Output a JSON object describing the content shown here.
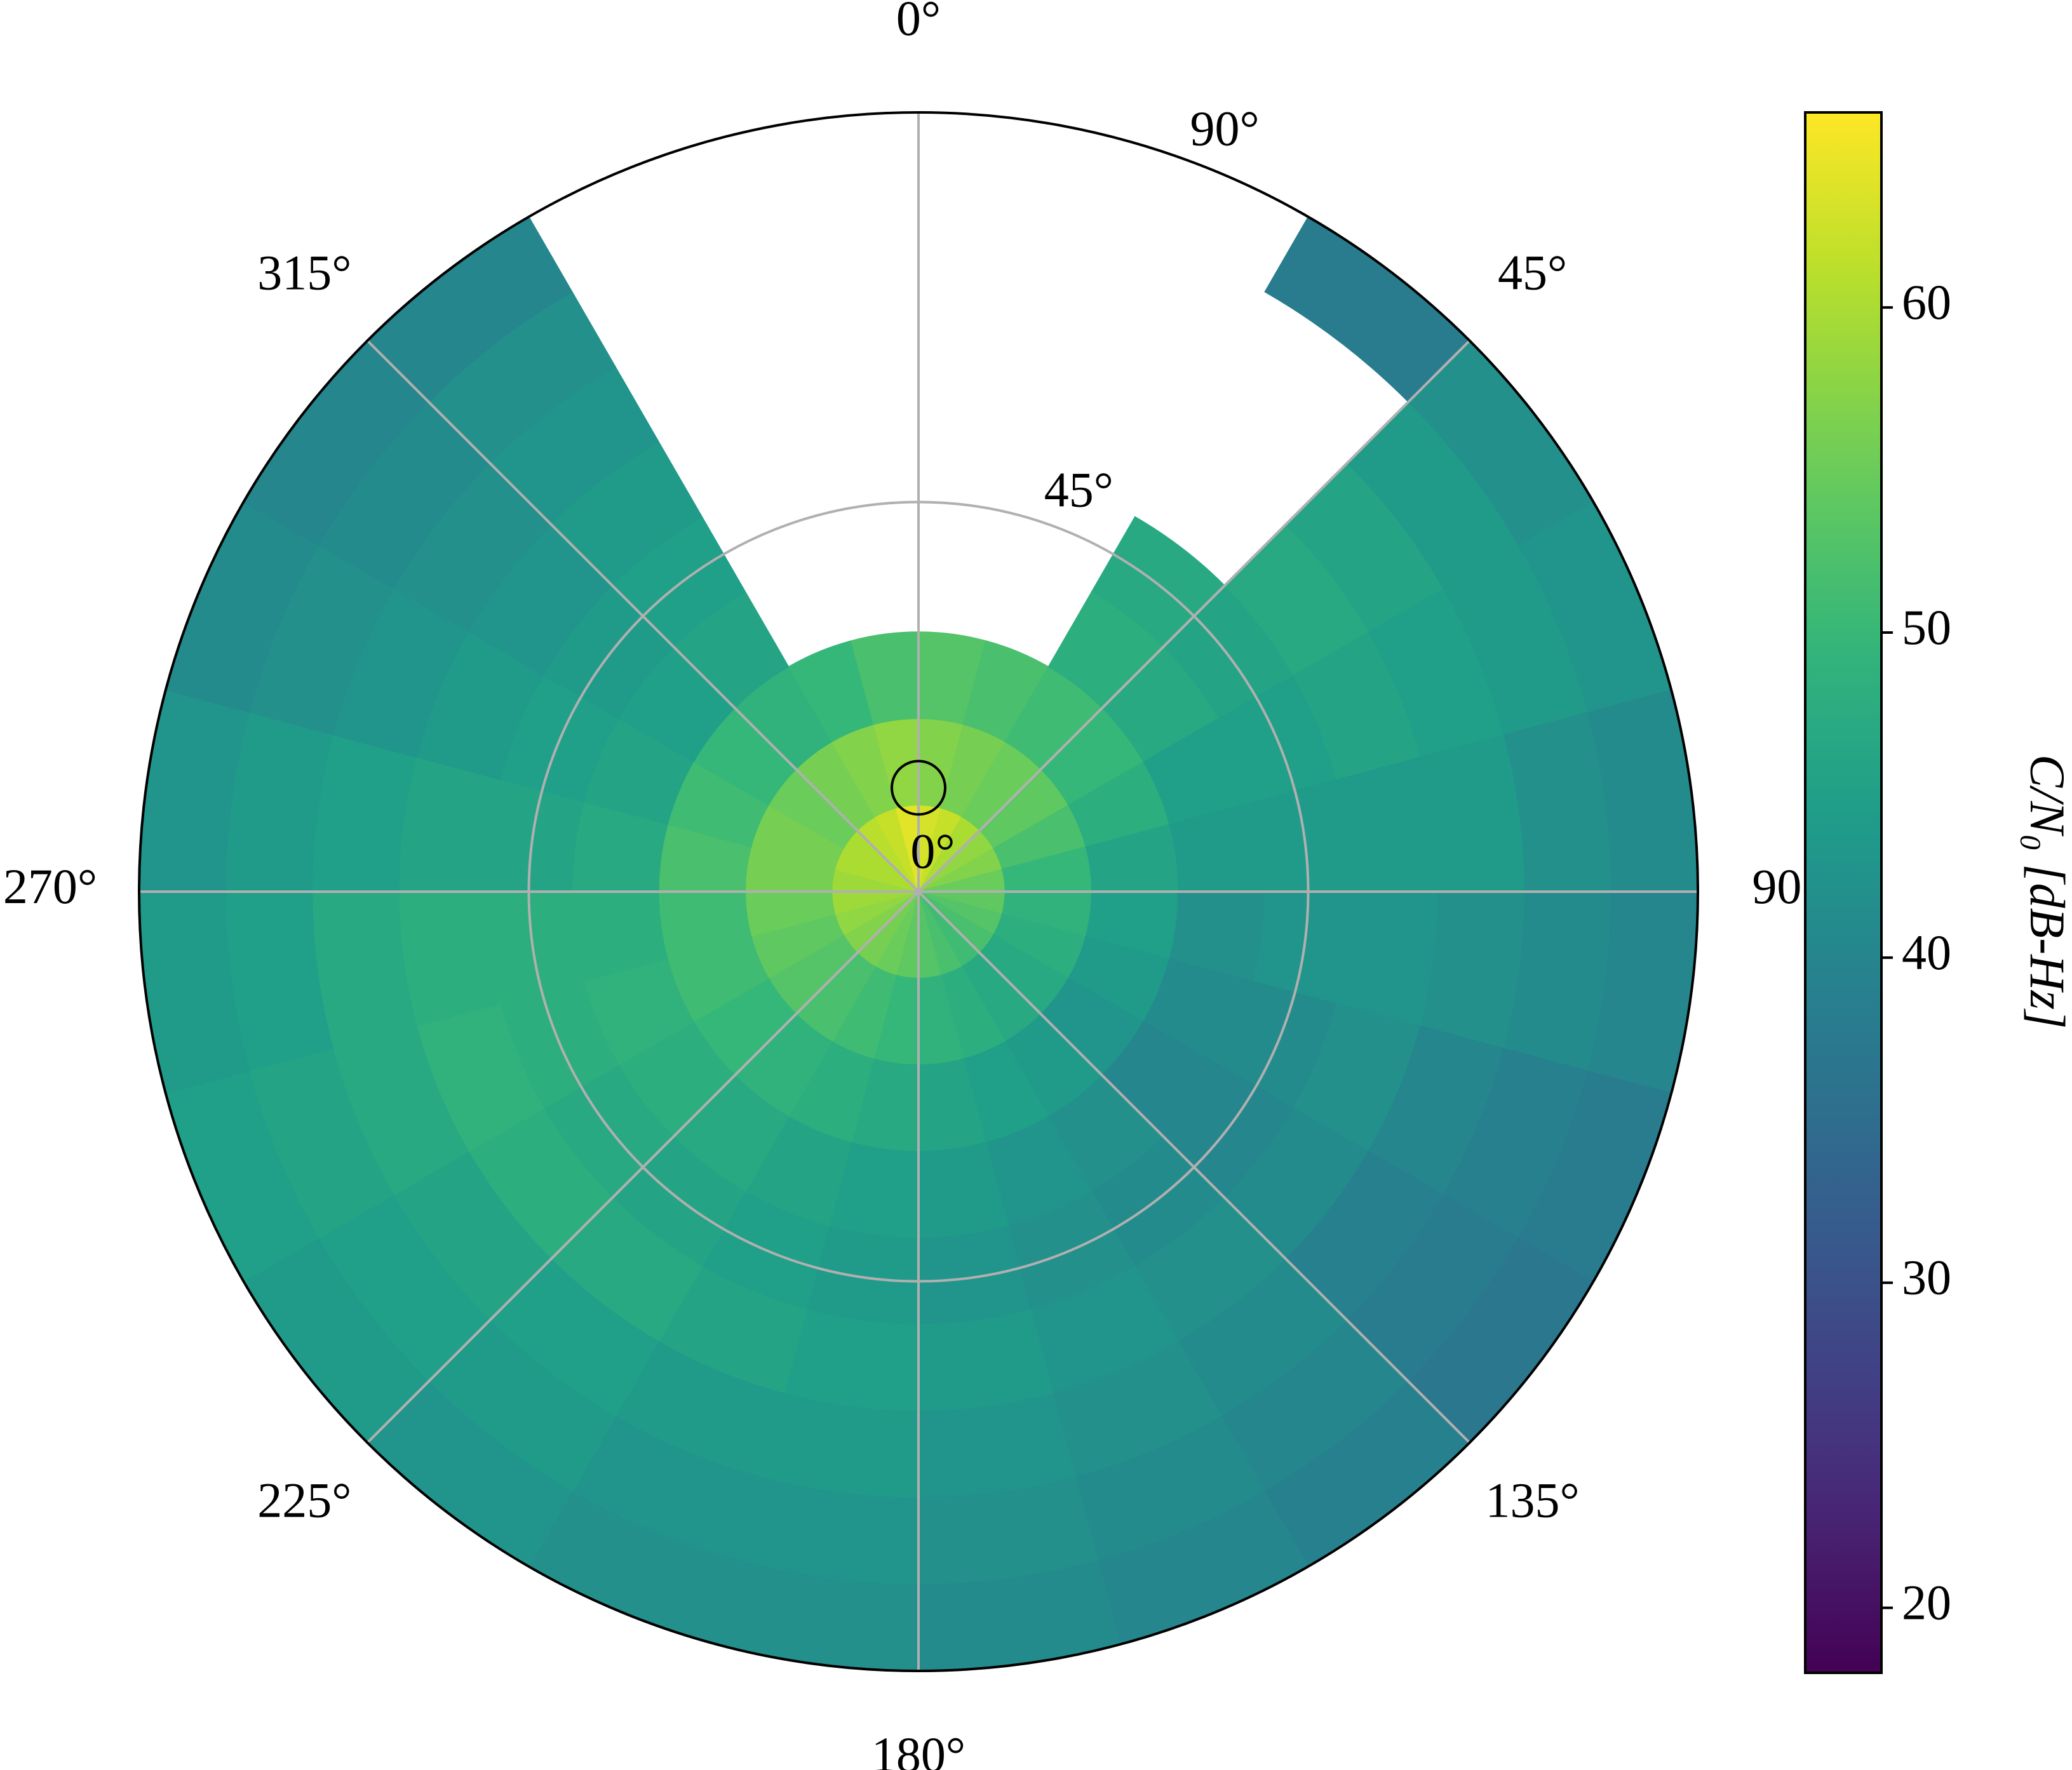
{
  "chart_data": {
    "type": "polar_heatmap",
    "colormap": "viridis",
    "theta_direction": "clockwise",
    "theta_zero": "top",
    "theta_edges": [
      0,
      15,
      30,
      45,
      60,
      75,
      90,
      105,
      120,
      135,
      150,
      165,
      180,
      195,
      210,
      225,
      240,
      255,
      270,
      285,
      300,
      315,
      330,
      345,
      360
    ],
    "r_edges": [
      0,
      10,
      20,
      30,
      40,
      50,
      60,
      70,
      80,
      90
    ],
    "values": [
      [
        63,
        62,
        60,
        58,
        57,
        55,
        54,
        53,
        52,
        51,
        52,
        53,
        54,
        55,
        56,
        57,
        58,
        59,
        59,
        60,
        60,
        61,
        62,
        64
      ],
      [
        57,
        56,
        55,
        54,
        52,
        50,
        49,
        48,
        47,
        47,
        48,
        49,
        50,
        51,
        52,
        53,
        54,
        55,
        56,
        56,
        55,
        56,
        57,
        58
      ],
      [
        53,
        52,
        51,
        50,
        48,
        46,
        45,
        44,
        43,
        44,
        45,
        46,
        47,
        48,
        49,
        50,
        51,
        51,
        52,
        51,
        50,
        49,
        50,
        52
      ],
      [
        null,
        null,
        48,
        47,
        45,
        44,
        42,
        41,
        40,
        42,
        43,
        44,
        45,
        46,
        47,
        48,
        49,
        48,
        47,
        46,
        45,
        46,
        null,
        null
      ],
      [
        null,
        null,
        47,
        46,
        45,
        44,
        43,
        41,
        40,
        41,
        42,
        43,
        44,
        45,
        46,
        47,
        48,
        48,
        46,
        45,
        44,
        45,
        null,
        null
      ],
      [
        null,
        null,
        null,
        47,
        46,
        44,
        43,
        42,
        41,
        42,
        43,
        44,
        45,
        46,
        47,
        48,
        49,
        48,
        46,
        44,
        43,
        44,
        null,
        null
      ],
      [
        null,
        null,
        null,
        46,
        45,
        44,
        42,
        40,
        39,
        41,
        42,
        43,
        44,
        44,
        45,
        46,
        47,
        47,
        45,
        43,
        42,
        43,
        null,
        null
      ],
      [
        null,
        null,
        null,
        44,
        44,
        42,
        41,
        39,
        38,
        40,
        41,
        42,
        43,
        43,
        44,
        45,
        46,
        45,
        44,
        42,
        41,
        42,
        null,
        null
      ],
      [
        null,
        null,
        38,
        42,
        43,
        41,
        40,
        38,
        37,
        39,
        40,
        41,
        42,
        42,
        43,
        44,
        45,
        44,
        43,
        41,
        40,
        40,
        null,
        null
      ]
    ],
    "rlim": [
      0,
      90
    ],
    "rticks": [
      {
        "value": 0,
        "label": "0°"
      },
      {
        "value": 45,
        "label": "45°"
      },
      {
        "value": 90,
        "label": "90°"
      }
    ],
    "thetaticks": [
      {
        "value": 0,
        "label": "0°"
      },
      {
        "value": 45,
        "label": "45°"
      },
      {
        "value": 90,
        "label": "90°"
      },
      {
        "value": 135,
        "label": "135°"
      },
      {
        "value": 180,
        "label": "180°"
      },
      {
        "value": 225,
        "label": "225°"
      },
      {
        "value": 270,
        "label": "270°"
      },
      {
        "value": 315,
        "label": "315°"
      }
    ],
    "grid": true,
    "marker": {
      "theta": 0,
      "r": 12
    },
    "clim": [
      18,
      66
    ],
    "cticks": [
      20,
      30,
      40,
      50,
      60
    ],
    "colorbar_label": "C/N₀ [dB-Hz]"
  }
}
